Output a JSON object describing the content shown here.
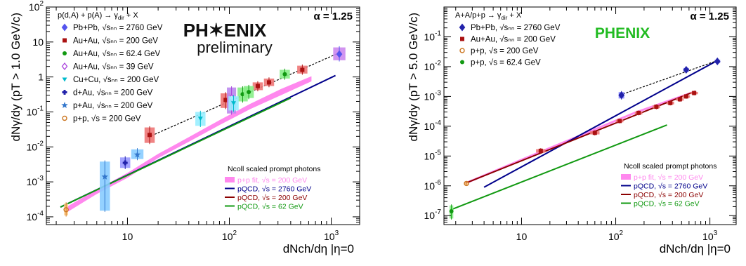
{
  "figure": {
    "colors": {
      "magenta_band": "#ff88ee",
      "blue": "#00008b",
      "red": "#8b0000",
      "green": "#119911",
      "phenix_green": "#22bb22"
    }
  },
  "chart_data": [
    {
      "type": "scatter",
      "title_lines": [
        "p(d,A) + p(A) → γ",
        "dir",
        " + X"
      ],
      "ylabel": "dNγ/dy  (pT > 1.0 GeV/c)",
      "xlabel": "dNch/dη |η=0",
      "alpha_label": "α = 1.25",
      "logo": {
        "line1": "PH✶ENIX",
        "line2": "preliminary"
      },
      "xscale": "log",
      "yscale": "log",
      "xlim": [
        1.6,
        1900
      ],
      "ylim": [
        6e-05,
        100
      ],
      "yticks": [
        {
          "v": 0.0001,
          "m": "10",
          "e": "-4"
        },
        {
          "v": 0.001,
          "m": "10",
          "e": "-3"
        },
        {
          "v": 0.01,
          "m": "10",
          "e": "-2"
        },
        {
          "v": 0.1,
          "m": "10",
          "e": "-1"
        },
        {
          "v": 1,
          "m": "1",
          "e": ""
        },
        {
          "v": 10,
          "m": "10",
          "e": ""
        },
        {
          "v": 100,
          "m": "10",
          "e": "2"
        }
      ],
      "xticks": [
        {
          "v": 10,
          "m": "10",
          "e": ""
        },
        {
          "v": 100,
          "m": "10",
          "e": "2"
        },
        {
          "v": 1000,
          "m": "10",
          "e": "3"
        }
      ],
      "legend_top": [
        {
          "label": "Pb+Pb, √sₙₙ = 2760 GeV",
          "marker": "diamond",
          "color": "#5555ee"
        },
        {
          "label": "Au+Au, √sₙₙ = 200 GeV",
          "marker": "square",
          "color": "#aa1111"
        },
        {
          "label": "Au+Au, √sₙₙ = 62.4 GeV",
          "marker": "circle",
          "color": "#119911"
        },
        {
          "label": "Au+Au, √sₙₙ = 39 GeV",
          "marker": "diamond-open",
          "color": "#aa44dd"
        },
        {
          "label": "Cu+Cu, √sₙₙ = 200 GeV",
          "marker": "triangle-down",
          "color": "#00bbcc"
        },
        {
          "label": "d+Au, √sₙₙ = 200 GeV",
          "marker": "cross",
          "color": "#2222aa"
        },
        {
          "label": "p+Au, √sₙₙ = 200 GeV",
          "marker": "star",
          "color": "#3377cc"
        },
        {
          "label": "p+p, √s = 200 GeV",
          "marker": "circle-open",
          "color": "#cc7722"
        }
      ],
      "legend_bottom_title": "Ncoll scaled prompt photons",
      "legend_bottom": [
        {
          "label": "p+p fit, √s = 200 GeV",
          "style": "band",
          "color": "#ff88ee"
        },
        {
          "label": "pQCD, √s = 2760 GeV",
          "style": "line",
          "color": "#00008b"
        },
        {
          "label": "pQCD, √s = 200 GeV",
          "style": "line",
          "color": "#8b0000"
        },
        {
          "label": "pQCD, √s = 62 GeV",
          "style": "line",
          "color": "#119911"
        }
      ],
      "band": {
        "x": [
          2.5,
          5,
          10,
          20,
          40,
          80,
          160,
          320,
          640
        ],
        "low": [
          0.00013,
          0.00045,
          0.0013,
          0.0048,
          0.014,
          0.042,
          0.12,
          0.3,
          0.75
        ],
        "high": [
          0.00019,
          0.0006,
          0.0018,
          0.0063,
          0.019,
          0.058,
          0.17,
          0.45,
          1.05
        ]
      },
      "lines": [
        {
          "x": [
            2.2,
            1100
          ],
          "y": [
            0.00019,
            1.1
          ],
          "color": "#00008b"
        },
        {
          "x": [
            2.2,
            400
          ],
          "y": [
            0.00019,
            0.25
          ],
          "color": "#119911"
        }
      ],
      "fit_line": {
        "x": [
          16,
          1250
        ],
        "y": [
          0.019,
          5.2
        ]
      },
      "points": [
        {
          "x": 1200,
          "y": 4.5,
          "color": "#5555ee",
          "box": "#cc88ee",
          "bw": 0.06,
          "bh": [
            3.0,
            7.0
          ],
          "marker": "diamond"
        },
        {
          "x": 190,
          "y": 0.55,
          "color": "#aa1111",
          "box": "#ee7777",
          "bw": 0.05,
          "bh": [
            0.42,
            0.7
          ],
          "marker": "square"
        },
        {
          "x": 245,
          "y": 0.7,
          "color": "#aa1111",
          "box": "#ee7777",
          "bw": 0.05,
          "bh": [
            0.55,
            0.9
          ],
          "marker": "square"
        },
        {
          "x": 520,
          "y": 1.6,
          "color": "#aa1111",
          "box": "#ee7777",
          "bw": 0.05,
          "bh": [
            1.25,
            2.1
          ],
          "marker": "square"
        },
        {
          "x": 92,
          "y": 0.22,
          "color": "#aa1111",
          "box": "#ee7777",
          "bw": 0.05,
          "bh": [
            0.13,
            0.34
          ],
          "marker": "square"
        },
        {
          "x": 16.5,
          "y": 0.022,
          "color": "#aa1111",
          "box": "#ee7777",
          "bw": 0.05,
          "bh": [
            0.013,
            0.036
          ],
          "marker": "square"
        },
        {
          "x": 135,
          "y": 0.32,
          "color": "#119911",
          "box": "#88ee88",
          "bw": 0.05,
          "bh": [
            0.2,
            0.5
          ],
          "marker": "circle"
        },
        {
          "x": 155,
          "y": 0.37,
          "color": "#119911",
          "box": "#88ee88",
          "bw": 0.05,
          "bh": [
            0.25,
            0.55
          ],
          "marker": "circle"
        },
        {
          "x": 350,
          "y": 1.2,
          "color": "#119911",
          "box": "#88ee88",
          "bw": 0.05,
          "bh": [
            0.9,
            1.6
          ],
          "marker": "circle"
        },
        {
          "x": 105,
          "y": 0.25,
          "color": "#aa44dd",
          "box": "#bb88ee",
          "bw": 0.045,
          "bh": [
            0.09,
            0.5
          ],
          "marker": "diamond-open"
        },
        {
          "x": 52,
          "y": 0.065,
          "color": "#00bbcc",
          "box": "#99eeff",
          "bw": 0.05,
          "bh": [
            0.04,
            0.1
          ],
          "marker": "triangle-down"
        },
        {
          "x": 110,
          "y": 0.18,
          "color": "#00bbcc",
          "box": "#99eeff",
          "bw": 0.05,
          "bh": [
            0.11,
            0.28
          ],
          "marker": "triangle-down"
        },
        {
          "x": 9.5,
          "y": 0.0035,
          "color": "#2222aa",
          "box": "#9999ff",
          "bw": 0.05,
          "bh": [
            0.0025,
            0.005
          ],
          "marker": "cross"
        },
        {
          "x": 12.5,
          "y": 0.006,
          "color": "#3377cc",
          "box": "#88ccff",
          "bw": 0.06,
          "bh": [
            0.0045,
            0.0085
          ],
          "marker": "star"
        },
        {
          "x": 6,
          "y": 0.0014,
          "color": "#3377cc",
          "box": "#88ccff",
          "bw": 0.05,
          "bh": [
            0.00015,
            0.0038
          ],
          "marker": "star"
        },
        {
          "x": 2.5,
          "y": 0.00016,
          "color": "#cc7722",
          "box": "#ffcc88",
          "bw": 0.02,
          "bh": [
            0.00011,
            0.00024
          ],
          "marker": "circle-open"
        }
      ]
    },
    {
      "type": "scatter",
      "title_lines": [
        "A+A/p+p → γ",
        "dir",
        " + X"
      ],
      "ylabel": "dNγ/dy  (pT > 5.0 GeV/c)",
      "xlabel": "dNch/dη |η=0",
      "alpha_label": "α = 1.25",
      "logo": {
        "line1": "PHENIX",
        "line2": ""
      },
      "xscale": "log",
      "yscale": "log",
      "xlim": [
        1.5,
        1900
      ],
      "ylim": [
        5e-08,
        1
      ],
      "yticks": [
        {
          "v": 1e-07,
          "m": "10",
          "e": "-7"
        },
        {
          "v": 1e-06,
          "m": "10",
          "e": "-6"
        },
        {
          "v": 1e-05,
          "m": "10",
          "e": "-5"
        },
        {
          "v": 0.0001,
          "m": "10",
          "e": "-4"
        },
        {
          "v": 0.001,
          "m": "10",
          "e": "-3"
        },
        {
          "v": 0.01,
          "m": "10",
          "e": "-2"
        },
        {
          "v": 0.1,
          "m": "10",
          "e": "-1"
        }
      ],
      "xticks": [
        {
          "v": 10,
          "m": "10",
          "e": ""
        },
        {
          "v": 100,
          "m": "10",
          "e": "2"
        },
        {
          "v": 1000,
          "m": "10",
          "e": "3"
        }
      ],
      "legend_top": [
        {
          "label": "Pb+Pb, √sₙₙ = 2760 GeV",
          "marker": "diamond",
          "color": "#2222aa"
        },
        {
          "label": "Au+Au, √sₙₙ = 200 GeV",
          "marker": "square",
          "color": "#aa1111"
        },
        {
          "label": "p+p, √s = 200 GeV",
          "marker": "circle-open",
          "color": "#cc7722"
        },
        {
          "label": "p+p, √s = 62.4 GeV",
          "marker": "circle",
          "color": "#119911"
        }
      ],
      "legend_bottom_title": "Ncoll scaled prompt photons",
      "legend_bottom": [
        {
          "label": "p+p fit, √s = 200 GeV",
          "style": "band",
          "color": "#ff88ee"
        },
        {
          "label": "pQCD, √s = 2760 GeV",
          "style": "line",
          "color": "#00008b"
        },
        {
          "label": "pQCD, √s = 200 GeV",
          "style": "line",
          "color": "#8b0000"
        },
        {
          "label": "pQCD, √s = 62 GeV",
          "style": "line",
          "color": "#119911"
        }
      ],
      "band": {
        "x": [
          2.5,
          10,
          40,
          160,
          700
        ],
        "low": [
          1.1e-06,
          6.8e-06,
          4.2e-05,
          0.00026,
          0.0014
        ],
        "high": [
          1.3e-06,
          8.2e-06,
          5e-05,
          0.00031,
          0.0016
        ]
      },
      "lines": [
        {
          "x": [
            4,
            1200
          ],
          "y": [
            9e-07,
            0.016
          ],
          "color": "#00008b"
        },
        {
          "x": [
            2.5,
            700
          ],
          "y": [
            1.2e-06,
            0.0015
          ],
          "color": "#8b0000"
        },
        {
          "x": [
            1.8,
            350
          ],
          "y": [
            1.6e-07,
            0.00011
          ],
          "color": "#119911"
        }
      ],
      "fit_line": {
        "x": [
          110,
          1200
        ],
        "y": [
          0.0011,
          0.016
        ]
      },
      "points": [
        {
          "x": 1200,
          "y": 0.015,
          "color": "#2222aa",
          "box": "#8888ff",
          "bw": 0.03,
          "bh": [
            0.013,
            0.017
          ],
          "marker": "diamond"
        },
        {
          "x": 560,
          "y": 0.0078,
          "color": "#2222aa",
          "box": "#8888ff",
          "bw": 0.03,
          "bh": [
            0.0067,
            0.009
          ],
          "marker": "diamond"
        },
        {
          "x": 115,
          "y": 0.0011,
          "color": "#2222aa",
          "box": "#8888ff",
          "bw": 0.03,
          "bh": [
            0.00085,
            0.0014
          ],
          "marker": "diamond"
        },
        {
          "x": 16,
          "y": 1.5e-05,
          "color": "#aa1111",
          "box": "#ee7777",
          "bw": 0.05,
          "bh": [
            1.3e-05,
            1.7e-05
          ],
          "marker": "square"
        },
        {
          "x": 60,
          "y": 6e-05,
          "color": "#aa1111",
          "box": "#ee7777",
          "bw": 0.05,
          "bh": [
            5.3e-05,
            6.8e-05
          ],
          "marker": "square"
        },
        {
          "x": 110,
          "y": 0.00015,
          "color": "#aa1111",
          "box": "#ee7777",
          "bw": 0.04,
          "bh": [
            0.000135,
            0.000165
          ],
          "marker": "square"
        },
        {
          "x": 175,
          "y": 0.00028,
          "color": "#aa1111",
          "box": "#ee7777",
          "bw": 0.04,
          "bh": [
            0.00025,
            0.00031
          ],
          "marker": "square"
        },
        {
          "x": 270,
          "y": 0.00045,
          "color": "#aa1111",
          "box": "#ee7777",
          "bw": 0.04,
          "bh": [
            0.0004,
            0.0005
          ],
          "marker": "square"
        },
        {
          "x": 380,
          "y": 0.0006,
          "color": "#aa1111",
          "box": "#ee7777",
          "bw": 0.04,
          "bh": [
            0.00054,
            0.00067
          ],
          "marker": "square"
        },
        {
          "x": 480,
          "y": 0.0008,
          "color": "#aa1111",
          "box": "#ee7777",
          "bw": 0.04,
          "bh": [
            0.00072,
            0.00088
          ],
          "marker": "square"
        },
        {
          "x": 560,
          "y": 0.001,
          "color": "#aa1111",
          "box": "#ee7777",
          "bw": 0.04,
          "bh": [
            0.0009,
            0.0011
          ],
          "marker": "square"
        },
        {
          "x": 680,
          "y": 0.0013,
          "color": "#aa1111",
          "box": "#ee7777",
          "bw": 0.04,
          "bh": [
            0.00118,
            0.00142
          ],
          "marker": "square"
        },
        {
          "x": 2.6,
          "y": 1.2e-06,
          "color": "#cc7722",
          "box": "#ffcc88",
          "bw": 0.02,
          "bh": [
            1.1e-06,
            1.3e-06
          ],
          "marker": "circle-open"
        },
        {
          "x": 1.8,
          "y": 1.4e-07,
          "color": "#119911",
          "box": "#88ee88",
          "bw": 0.02,
          "bh": [
            8e-08,
            2.2e-07
          ],
          "marker": "circle"
        }
      ]
    }
  ]
}
